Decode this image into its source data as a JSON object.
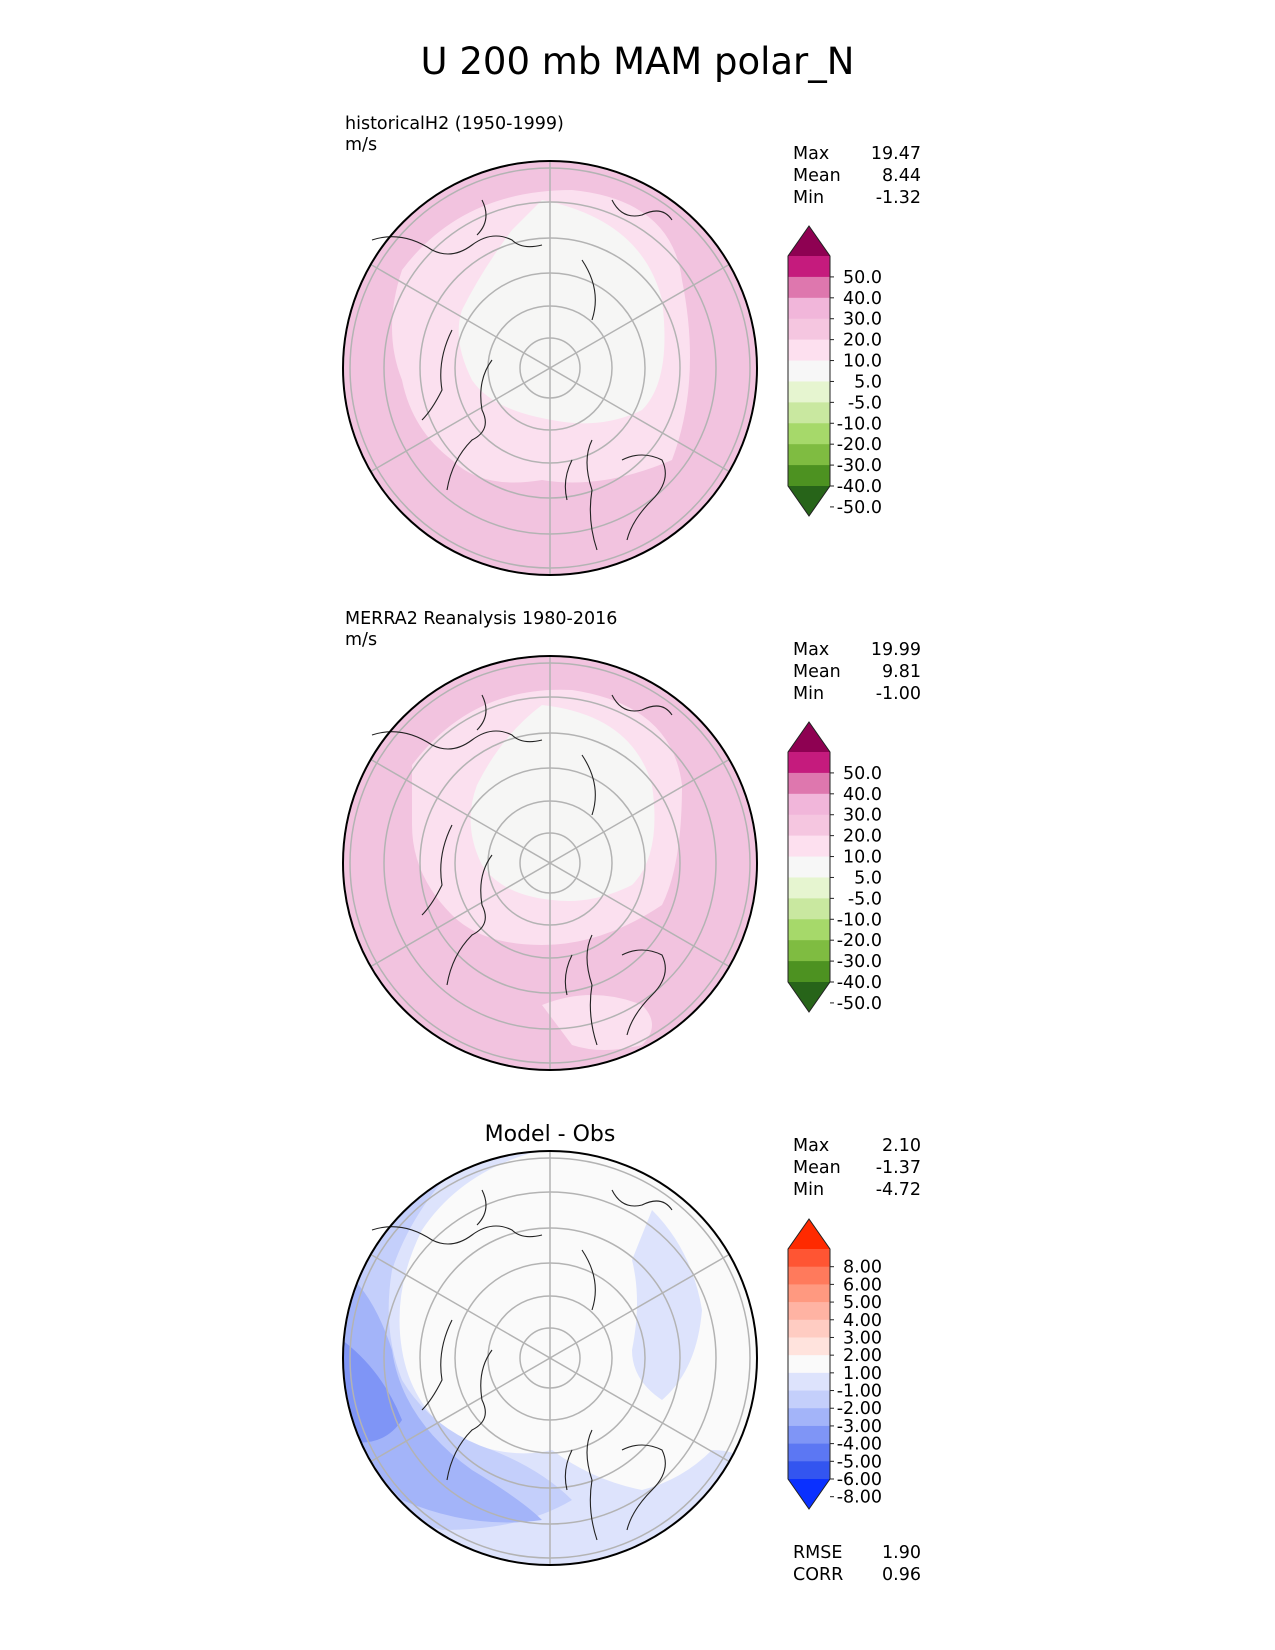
{
  "figure_title": "U 200 mb MAM polar_N",
  "panels": [
    {
      "id": "test",
      "label_line1": "historicalH2 (1950-1999)",
      "label_line2": "m/s",
      "stats": [
        [
          "Max",
          "19.47"
        ],
        [
          "Mean",
          "8.44"
        ],
        [
          "Min",
          "-1.32"
        ]
      ]
    },
    {
      "id": "ref",
      "label_line1": "MERRA2 Reanalysis 1980-2016",
      "label_line2": "m/s",
      "stats": [
        [
          "Max",
          "19.99"
        ],
        [
          "Mean",
          "9.81"
        ],
        [
          "Min",
          "-1.00"
        ]
      ]
    },
    {
      "id": "diff",
      "title": "Model - Obs",
      "stats": [
        [
          "Max",
          "2.10"
        ],
        [
          "Mean",
          "-1.37"
        ],
        [
          "Min",
          "-4.72"
        ]
      ],
      "metrics": [
        [
          "RMSE",
          "1.90"
        ],
        [
          "CORR",
          "0.96"
        ]
      ]
    }
  ],
  "colorbars": {
    "field": {
      "ticks": [
        "50.0",
        "40.0",
        "30.0",
        "20.0",
        "10.0",
        "5.0",
        "-5.0",
        "-10.0",
        "-20.0",
        "-30.0",
        "-40.0",
        "-50.0"
      ],
      "colors": [
        "#8e0152",
        "#c51b7d",
        "#de77ae",
        "#f1b6da",
        "#f5c6e0",
        "#fde0ef",
        "#f7f7f7",
        "#e6f5d0",
        "#c9e8a0",
        "#a6d96a",
        "#7fbc41",
        "#4d9221",
        "#276419"
      ]
    },
    "diff": {
      "ticks": [
        "8.00",
        "6.00",
        "5.00",
        "4.00",
        "3.00",
        "2.00",
        "1.00",
        "-1.00",
        "-2.00",
        "-3.00",
        "-4.00",
        "-5.00",
        "-6.00",
        "-8.00"
      ],
      "colors": [
        "#ff2a00",
        "#ff5533",
        "#ff7a5c",
        "#ff9980",
        "#ffb3a3",
        "#ffccc2",
        "#ffe3dd",
        "#fafafa",
        "#dde3fc",
        "#c4cffb",
        "#a3b4f9",
        "#7f95f6",
        "#5c77f3",
        "#3355f0",
        "#0a30ff"
      ]
    }
  },
  "chart_data": [
    {
      "type": "heatmap",
      "title": "historicalH2 (1950-1999)",
      "units": "m/s",
      "projection": "north polar stereographic",
      "variable": "U 200 mb MAM",
      "stats": {
        "max": 19.47,
        "mean": 8.44,
        "min": -1.32
      },
      "levels": [
        -50,
        -40,
        -30,
        -20,
        -10,
        -5,
        5,
        10,
        20,
        30,
        40,
        50
      ]
    },
    {
      "type": "heatmap",
      "title": "MERRA2 Reanalysis 1980-2016",
      "units": "m/s",
      "projection": "north polar stereographic",
      "variable": "U 200 mb MAM",
      "stats": {
        "max": 19.99,
        "mean": 9.81,
        "min": -1.0
      },
      "levels": [
        -50,
        -40,
        -30,
        -20,
        -10,
        -5,
        5,
        10,
        20,
        30,
        40,
        50
      ]
    },
    {
      "type": "heatmap",
      "title": "Model - Obs",
      "projection": "north polar stereographic",
      "stats": {
        "max": 2.1,
        "mean": -1.37,
        "min": -4.72,
        "rmse": 1.9,
        "corr": 0.96
      },
      "levels": [
        -8,
        -6,
        -5,
        -4,
        -3,
        -2,
        -1,
        1,
        2,
        3,
        4,
        5,
        6,
        8
      ]
    }
  ]
}
